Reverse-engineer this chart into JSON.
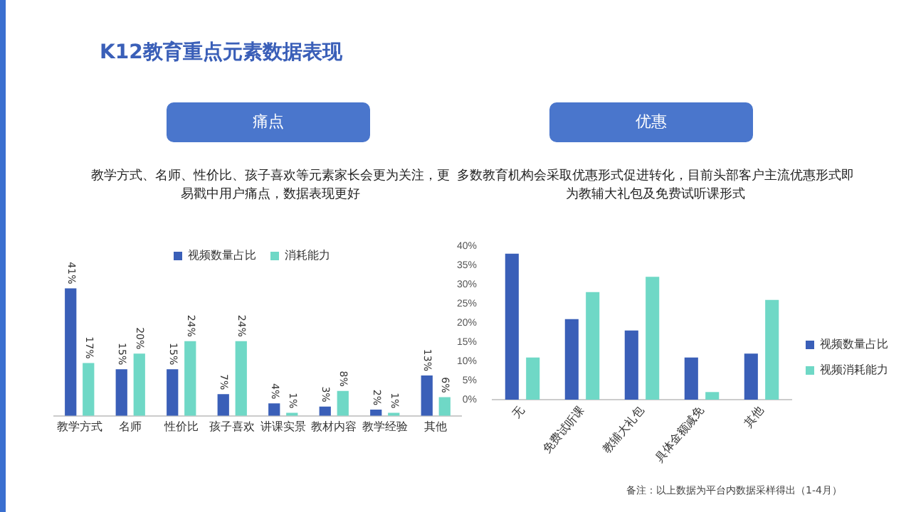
{
  "chart_data": [
    {
      "type": "bar",
      "title": "痛点",
      "subtitle": "教学方式、名师、性价比、孩子喜欢等元素家长会更为关注，更易戳中用户痛点，数据表现更好",
      "annotations": [
        "K12教育重点元素数据表现"
      ],
      "categories": [
        "教学方式",
        "名师",
        "性价比",
        "孩子喜欢",
        "讲课实景",
        "教材内容",
        "教学经验",
        "其他"
      ],
      "series": [
        {
          "name": "视频数量占比",
          "color": "#3a5fb8",
          "values": [
            41,
            15,
            15,
            7,
            4,
            3,
            2,
            13
          ],
          "value_labels": [
            "41%",
            "15%",
            "15%",
            "7%",
            "4%",
            "3%",
            "2%",
            "13%"
          ]
        },
        {
          "name": "消耗能力",
          "color": "#6fd8c6",
          "values": [
            17,
            20,
            24,
            24,
            1,
            8,
            1,
            6
          ],
          "value_labels": [
            "17%",
            "20%",
            "24%",
            "24%",
            "1%",
            "8%",
            "1%",
            "6%"
          ]
        }
      ],
      "legend": "top",
      "tick_labels": "x",
      "grid": false
    },
    {
      "type": "bar",
      "title": "优惠",
      "subtitle": "多数教育机构会采取优惠形式促进转化，目前头部客户主流优惠形式即为教辅大礼包及免费试听课形式",
      "annotations": [
        "备注：以上数据为平台内数据采样得出（1-4月）"
      ],
      "categories": [
        "无",
        "免费试听课",
        "教辅大礼包",
        "具体金额减免",
        "其他"
      ],
      "series": [
        {
          "name": "视频数量占比",
          "color": "#3a5fb8",
          "values": [
            38,
            21,
            18,
            11,
            12
          ]
        },
        {
          "name": "视频消耗能力",
          "color": "#6fd8c6",
          "values": [
            11,
            28,
            32,
            2,
            26
          ]
        }
      ],
      "ylim": [
        0,
        40
      ],
      "yticks": [
        {
          "value": 0,
          "label": "0%"
        },
        {
          "value": 5,
          "label": "5%"
        },
        {
          "value": 10,
          "label": "10%"
        },
        {
          "value": 15,
          "label": "15%"
        },
        {
          "value": 20,
          "label": "20%"
        },
        {
          "value": 25,
          "label": "25%"
        },
        {
          "value": 30,
          "label": "30%"
        },
        {
          "value": 35,
          "label": "35%"
        },
        {
          "value": 40,
          "label": "40%"
        }
      ],
      "legend": "right",
      "grid": false
    }
  ]
}
